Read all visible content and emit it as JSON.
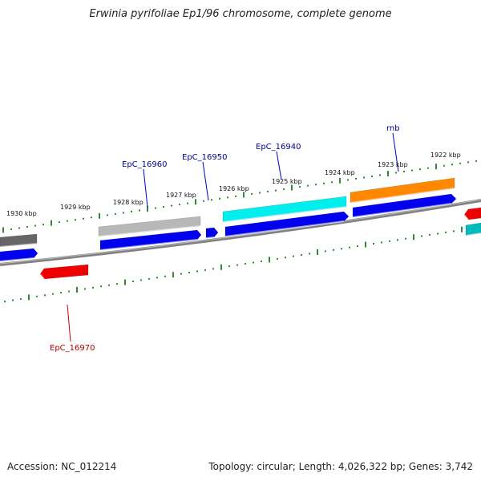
{
  "title": "Erwinia pyrifoliae Ep1/96 chromosome, complete genome",
  "footer": {
    "accession": "Accession: NC_012214",
    "summary": "Topology: circular; Length: 4,026,322 bp; Genes: 3,742"
  },
  "colors": {
    "backbone": "#808080",
    "ticks": "#2e8b2e",
    "forward_label": "#00008b",
    "reverse_label": "#b00000"
  },
  "kbp_ticks": [
    "1930 kbp",
    "1929 kbp",
    "1928 kbp",
    "1927 kbp",
    "1926 kbp",
    "1925 kbp",
    "1924 kbp",
    "1923 kbp",
    "1922 kbp"
  ],
  "gene_labels": [
    {
      "name": "EpC_16960",
      "strand": "forward"
    },
    {
      "name": "EpC_16950",
      "strand": "forward"
    },
    {
      "name": "EpC_16940",
      "strand": "forward"
    },
    {
      "name": "rnb",
      "strand": "forward"
    },
    {
      "name": "EpC_16970",
      "strand": "reverse"
    }
  ],
  "features": [
    {
      "id": "gene-gray-left",
      "color": "#666666"
    },
    {
      "id": "cds-blue-left",
      "color": "#0000ee"
    },
    {
      "id": "gene-lightgray",
      "color": "#b8b8b8"
    },
    {
      "id": "cds-blue-16960",
      "color": "#0000ee"
    },
    {
      "id": "cds-blue-16950",
      "color": "#0000ee"
    },
    {
      "id": "gene-cyan-16940",
      "color": "#00eeee"
    },
    {
      "id": "cds-blue-16940",
      "color": "#0000ee"
    },
    {
      "id": "gene-orange-rnb",
      "color": "#ff8800"
    },
    {
      "id": "cds-blue-rnb",
      "color": "#0000ee"
    },
    {
      "id": "cds-red-16970",
      "color": "#ee0000"
    },
    {
      "id": "cds-red-right",
      "color": "#ee0000"
    },
    {
      "id": "gene-teal-right",
      "color": "#00bbbb"
    }
  ]
}
